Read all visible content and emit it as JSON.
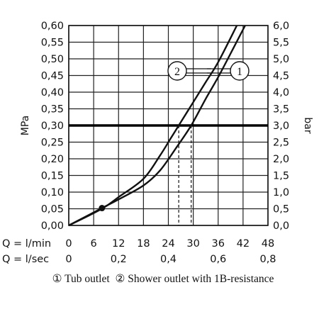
{
  "chart_data": {
    "type": "line",
    "left_axis": {
      "label": "MPa",
      "ylim": [
        0,
        0.6
      ],
      "ticks": [
        "0,00",
        "0,05",
        "0,10",
        "0,15",
        "0,20",
        "0,25",
        "0,30",
        "0,35",
        "0,40",
        "0,45",
        "0,50",
        "0,55",
        "0,60"
      ]
    },
    "right_axis": {
      "label": "bar",
      "ylim": [
        0,
        6
      ],
      "ticks": [
        "0,0",
        "0,5",
        "1,0",
        "1,5",
        "2,0",
        "2,5",
        "3,0",
        "3,5",
        "4,0",
        "4,5",
        "5,0",
        "5,5",
        "6,0"
      ]
    },
    "x_axis_lmin": {
      "label": "Q = l/min",
      "xlim": [
        0,
        48
      ],
      "ticks": [
        "0",
        "6",
        "12",
        "18",
        "24",
        "30",
        "36",
        "42",
        "48"
      ]
    },
    "x_axis_lsec": {
      "label": "Q = l/sec",
      "ticks": [
        "0",
        "0,2",
        "0,4",
        "0,6",
        "0,8"
      ]
    },
    "grid": true,
    "reference_line": {
      "y_mpa": 0.3
    },
    "drop_lines_lmin": [
      26.5,
      29.5
    ],
    "series": [
      {
        "marker": "1",
        "name": "Tub outlet",
        "x": [
          0,
          8,
          12,
          18,
          22,
          26,
          29.5,
          33,
          36,
          40,
          42.5
        ],
        "y": [
          0,
          0.052,
          0.078,
          0.12,
          0.165,
          0.235,
          0.3,
          0.38,
          0.445,
          0.54,
          0.6
        ]
      },
      {
        "marker": "2",
        "name": "Shower outlet with 1B-resistance",
        "x": [
          0,
          8,
          12,
          18,
          22,
          24.5,
          26.5,
          30,
          33,
          36,
          40.5
        ],
        "y": [
          0,
          0.05,
          0.085,
          0.14,
          0.21,
          0.26,
          0.3,
          0.37,
          0.43,
          0.49,
          0.6
        ]
      }
    ],
    "marker_point": {
      "x": 8,
      "y": 0.052
    },
    "callouts": [
      {
        "marker": "2",
        "series": 1
      },
      {
        "marker": "1",
        "series": 0
      }
    ]
  },
  "caption": {
    "item1_symbol": "①",
    "item1_label": "Tub outlet",
    "item2_symbol": "②",
    "item2_label": "Shower outlet with 1B-resistance"
  }
}
